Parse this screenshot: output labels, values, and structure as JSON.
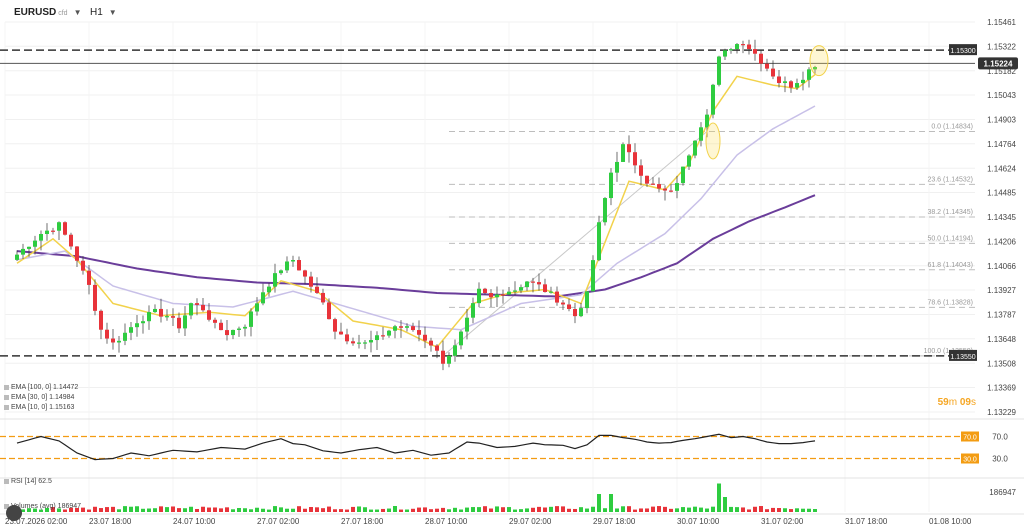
{
  "header": {
    "symbol": "EURUSD",
    "symbol_suffix": "cfd",
    "timeframe": "H1"
  },
  "indicators": [
    {
      "label": "EMA [100, 0] 1.14472",
      "color": "#6a3d9a"
    },
    {
      "label": "EMA [30, 0] 1.14984",
      "color": "#c8c0e8"
    },
    {
      "label": "EMA [10, 0] 1.15163",
      "color": "#f2d24b"
    }
  ],
  "timer": {
    "minutes": "59",
    "m": "m",
    "seconds": "09",
    "s": "s"
  },
  "rsi_label": "RSI [14] 62.5",
  "volume_label": "Volumes (avg) 186947",
  "chart_data": {
    "type": "candlestick",
    "price_axis_ticks": [
      "1.15461",
      "1.15322",
      "1.15182",
      "1.15043",
      "1.14903",
      "1.14764",
      "1.14624",
      "1.14485",
      "1.14345",
      "1.14206",
      "1.14066",
      "1.13927",
      "1.13787",
      "1.13648",
      "1.13508",
      "1.13369",
      "1.13229"
    ],
    "time_labels": [
      "23.07.2026 02:00",
      "23.07 18:00",
      "24.07 10:00",
      "27.07 02:00",
      "27.07 18:00",
      "28.07 10:00",
      "29.07 02:00",
      "29.07 18:00",
      "30.07 10:00",
      "31.07 02:00",
      "31.07 18:00",
      "01.08 10:00"
    ],
    "ylim": [
      1.13229,
      1.15461
    ],
    "current_price": "1.15224",
    "level_high": "1.15300",
    "level_low": "1.13550",
    "fibonacci": [
      {
        "label": "0.0 (1.14834)",
        "value": 1.14834
      },
      {
        "label": "23.6 (1.14532)",
        "value": 1.14532
      },
      {
        "label": "38.2 (1.14345)",
        "value": 1.14345
      },
      {
        "label": "50.0 (1.14194)",
        "value": 1.14194
      },
      {
        "label": "61.8 (1.14043)",
        "value": 1.14043
      },
      {
        "label": "78.6 (1.13828)",
        "value": 1.13828
      },
      {
        "label": "100.0 (1.13550)",
        "value": 1.1355
      }
    ],
    "close_path": [
      [
        0,
        1.1413
      ],
      [
        4,
        1.1425
      ],
      [
        7,
        1.143
      ],
      [
        9,
        1.1418
      ],
      [
        12,
        1.1395
      ],
      [
        14,
        1.137
      ],
      [
        16,
        1.1362
      ],
      [
        18,
        1.1368
      ],
      [
        20,
        1.1375
      ],
      [
        23,
        1.138
      ],
      [
        25,
        1.1378
      ],
      [
        27,
        1.1372
      ],
      [
        29,
        1.1385
      ],
      [
        31,
        1.1382
      ],
      [
        33,
        1.1372
      ],
      [
        35,
        1.1368
      ],
      [
        38,
        1.1373
      ],
      [
        41,
        1.1392
      ],
      [
        44,
        1.1405
      ],
      [
        46,
        1.141
      ],
      [
        48,
        1.14
      ],
      [
        51,
        1.1385
      ],
      [
        53,
        1.137
      ],
      [
        55,
        1.1365
      ],
      [
        58,
        1.1362
      ],
      [
        60,
        1.1365
      ],
      [
        63,
        1.1372
      ],
      [
        66,
        1.137
      ],
      [
        69,
        1.1362
      ],
      [
        71,
        1.1352
      ],
      [
        73,
        1.136
      ],
      [
        75,
        1.1375
      ],
      [
        77,
        1.1392
      ],
      [
        79,
        1.1388
      ],
      [
        81,
        1.1392
      ],
      [
        83,
        1.1393
      ],
      [
        85,
        1.1398
      ],
      [
        87,
        1.1395
      ],
      [
        89,
        1.139
      ],
      [
        91,
        1.1385
      ],
      [
        93,
        1.1378
      ],
      [
        95,
        1.139
      ],
      [
        97,
        1.143
      ],
      [
        99,
        1.146
      ],
      [
        101,
        1.1475
      ],
      [
        103,
        1.1465
      ],
      [
        105,
        1.1455
      ],
      [
        107,
        1.145
      ],
      [
        109,
        1.1448
      ],
      [
        111,
        1.1462
      ],
      [
        113,
        1.148
      ],
      [
        115,
        1.1495
      ],
      [
        117,
        1.1525
      ],
      [
        119,
        1.1532
      ],
      [
        121,
        1.1535
      ],
      [
        123,
        1.1528
      ],
      [
        125,
        1.152
      ],
      [
        127,
        1.1512
      ],
      [
        129,
        1.151
      ],
      [
        131,
        1.1515
      ],
      [
        133,
        1.1522
      ]
    ],
    "ema10_path": [
      [
        0,
        1.1408
      ],
      [
        6,
        1.1422
      ],
      [
        10,
        1.141
      ],
      [
        16,
        1.1385
      ],
      [
        24,
        1.1378
      ],
      [
        32,
        1.138
      ],
      [
        38,
        1.1378
      ],
      [
        44,
        1.1398
      ],
      [
        50,
        1.1392
      ],
      [
        56,
        1.1375
      ],
      [
        64,
        1.137
      ],
      [
        70,
        1.136
      ],
      [
        76,
        1.1385
      ],
      [
        82,
        1.1391
      ],
      [
        88,
        1.1393
      ],
      [
        94,
        1.1385
      ],
      [
        98,
        1.142
      ],
      [
        102,
        1.1455
      ],
      [
        108,
        1.145
      ],
      [
        112,
        1.1465
      ],
      [
        116,
        1.1495
      ],
      [
        120,
        1.1515
      ],
      [
        126,
        1.151
      ],
      [
        130,
        1.1508
      ],
      [
        133,
        1.1516
      ]
    ],
    "ema30_path": [
      [
        0,
        1.141
      ],
      [
        8,
        1.1415
      ],
      [
        16,
        1.1395
      ],
      [
        26,
        1.1385
      ],
      [
        36,
        1.1383
      ],
      [
        46,
        1.1392
      ],
      [
        56,
        1.1382
      ],
      [
        66,
        1.1372
      ],
      [
        74,
        1.137
      ],
      [
        84,
        1.1385
      ],
      [
        94,
        1.139
      ],
      [
        100,
        1.1408
      ],
      [
        108,
        1.1425
      ],
      [
        114,
        1.1445
      ],
      [
        120,
        1.147
      ],
      [
        126,
        1.1485
      ],
      [
        133,
        1.1498
      ]
    ],
    "ema100_path": [
      [
        0,
        1.1415
      ],
      [
        10,
        1.1412
      ],
      [
        20,
        1.1405
      ],
      [
        30,
        1.14
      ],
      [
        40,
        1.1397
      ],
      [
        50,
        1.1396
      ],
      [
        60,
        1.1394
      ],
      [
        70,
        1.1391
      ],
      [
        80,
        1.139
      ],
      [
        90,
        1.1389
      ],
      [
        98,
        1.1393
      ],
      [
        104,
        1.14
      ],
      [
        110,
        1.1408
      ],
      [
        116,
        1.1422
      ],
      [
        122,
        1.1432
      ],
      [
        128,
        1.144
      ],
      [
        133,
        1.1447
      ]
    ],
    "rsi": {
      "upper": "70.0",
      "lower": "30.0",
      "ylim": [
        0,
        100
      ],
      "path": [
        [
          0,
          58
        ],
        [
          4,
          70
        ],
        [
          7,
          62
        ],
        [
          10,
          40
        ],
        [
          13,
          28
        ],
        [
          16,
          30
        ],
        [
          19,
          40
        ],
        [
          22,
          35
        ],
        [
          26,
          45
        ],
        [
          30,
          42
        ],
        [
          34,
          50
        ],
        [
          38,
          47
        ],
        [
          41,
          58
        ],
        [
          44,
          66
        ],
        [
          46,
          57
        ],
        [
          48,
          55
        ],
        [
          51,
          44
        ],
        [
          54,
          40
        ],
        [
          57,
          46
        ],
        [
          60,
          50
        ],
        [
          63,
          40
        ],
        [
          66,
          45
        ],
        [
          69,
          36
        ],
        [
          72,
          40
        ],
        [
          75,
          60
        ],
        [
          77,
          58
        ],
        [
          80,
          50
        ],
        [
          83,
          52
        ],
        [
          86,
          58
        ],
        [
          88,
          55
        ],
        [
          91,
          54
        ],
        [
          93,
          48
        ],
        [
          95,
          55
        ],
        [
          97,
          72
        ],
        [
          99,
          72
        ],
        [
          101,
          68
        ],
        [
          103,
          65
        ],
        [
          105,
          60
        ],
        [
          107,
          58
        ],
        [
          109,
          59
        ],
        [
          111,
          63
        ],
        [
          113,
          66
        ],
        [
          115,
          70
        ],
        [
          117,
          74
        ],
        [
          119,
          68
        ],
        [
          121,
          70
        ],
        [
          123,
          66
        ],
        [
          125,
          60
        ],
        [
          127,
          57
        ],
        [
          129,
          57
        ],
        [
          131,
          59
        ],
        [
          133,
          62
        ]
      ]
    },
    "volume_ylim": [
      0,
      186947
    ]
  }
}
